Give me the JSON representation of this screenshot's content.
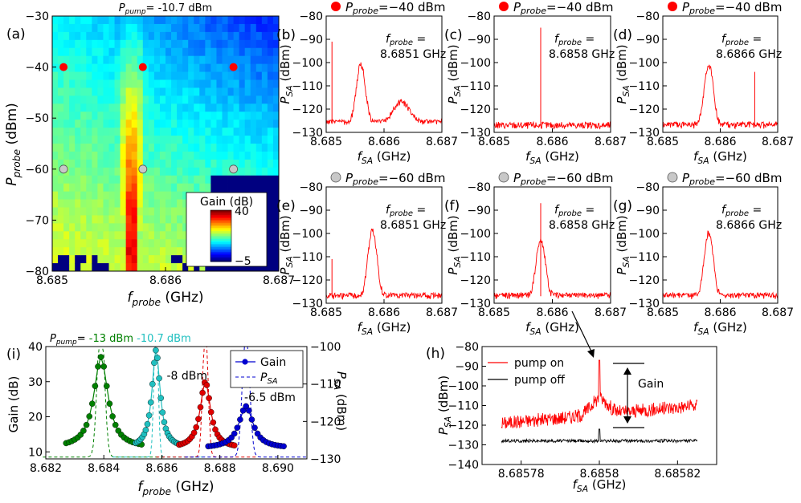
{
  "figure": {
    "panel_a": {
      "letter": "(a)",
      "title_prefix": "P",
      "title_sub": "pump",
      "title_value": "= -10.7 dBm",
      "xlabel_main": "f",
      "xlabel_sub": "probe",
      "xlabel_unit": " (GHz)",
      "ylabel_main": "P",
      "ylabel_sub": "probe",
      "ylabel_unit": " (dBm)",
      "colorbar_title": "Gain (dB)",
      "colorbar_max": "40",
      "colorbar_min": "−5"
    },
    "spectra_common": {
      "title_value_top": "=−40 dBm",
      "title_value_bottom": "=−60 dBm",
      "xlabel_main": "f",
      "xlabel_sub": "SA",
      "xlabel_unit": " (GHz)",
      "ylabel_main": "P",
      "ylabel_sub": "SA",
      "ylabel_unit": " (dBm)",
      "fprobe_label": "=",
      "trace_color": "#ff0000",
      "red_dot": "#ff0000",
      "gray_dot": "#c8c8c8"
    },
    "panel_h": {
      "letter": "(h)",
      "legend_on": "pump on",
      "legend_off": "pump off",
      "gain_label": "Gain",
      "xlabel_main": "f",
      "xlabel_sub": "SA",
      "xlabel_unit": " (GHz)",
      "ylabel_main": "P",
      "ylabel_sub": "SA",
      "ylabel_unit": " (dBm)"
    },
    "panel_i": {
      "letter": "(i)",
      "top_label_prefix": "P",
      "top_label_sub": "pump",
      "legend_gain": "Gain",
      "legend_psa_main": "P",
      "legend_psa_sub": "SA",
      "ylabel_left": "Gain (dB)",
      "ylabel_right_main": "P",
      "ylabel_right_sub": "SA",
      "ylabel_right_unit": " (dBm)",
      "xlabel_main": "f",
      "xlabel_sub": "probe",
      "xlabel_unit": " (GHz)"
    }
  },
  "chart_data": [
    {
      "id": "a",
      "type": "heatmap",
      "title": "Ppump = -10.7 dBm",
      "xlabel": "fprobe (GHz)",
      "ylabel": "Pprobe (dBm)",
      "xlim": [
        8.685,
        8.687
      ],
      "ylim": [
        -80,
        -30
      ],
      "xticks": [
        "8.685",
        "8.686",
        "8.687"
      ],
      "yticks": [
        "−30",
        "−40",
        "−50",
        "−60",
        "−70",
        "−80"
      ],
      "colorbar": {
        "label": "Gain (dB)",
        "range": [
          -5,
          40
        ],
        "colormap": "jet"
      },
      "peak_frequency": 8.6857,
      "markers": [
        {
          "x": 8.6851,
          "y": -40,
          "color": "red"
        },
        {
          "x": 8.6858,
          "y": -40,
          "color": "red"
        },
        {
          "x": 8.6866,
          "y": -40,
          "color": "red"
        },
        {
          "x": 8.6851,
          "y": -60,
          "color": "gray"
        },
        {
          "x": 8.6858,
          "y": -60,
          "color": "gray"
        },
        {
          "x": 8.6866,
          "y": -60,
          "color": "gray"
        }
      ]
    },
    {
      "id": "b",
      "type": "line",
      "pprobe": "−40",
      "fprobe": "8.6851 GHz",
      "xlim": [
        8.685,
        8.687
      ],
      "ylim": [
        -130,
        -80
      ],
      "xticks": [
        "8.685",
        "8.686",
        "8.687"
      ],
      "yticks": [
        "−80",
        "−90",
        "−100",
        "−110",
        "−120",
        "−130"
      ],
      "noise_floor": -126,
      "main_peak": {
        "x": 8.6856,
        "y": -101
      },
      "second_peak": {
        "x": 8.6863,
        "y": -117
      },
      "spur": {
        "x": 8.6851,
        "y": -91
      }
    },
    {
      "id": "c",
      "type": "line",
      "pprobe": "−40",
      "fprobe": "8.6858 GHz",
      "xlim": [
        8.685,
        8.687
      ],
      "ylim": [
        -130,
        -80
      ],
      "xticks": [
        "8.685",
        "8.686",
        "8.687"
      ],
      "yticks": [
        "−80",
        "−90",
        "−100",
        "−110",
        "−120",
        "−130"
      ],
      "noise_floor": -127,
      "spur": {
        "x": 8.6858,
        "y": -85
      }
    },
    {
      "id": "d",
      "type": "line",
      "pprobe": "−40",
      "fprobe": "8.6866 GHz",
      "xlim": [
        8.685,
        8.687
      ],
      "ylim": [
        -130,
        -80
      ],
      "xticks": [
        "8.685",
        "8.686",
        "8.687"
      ],
      "yticks": [
        "−80",
        "−90",
        "−100",
        "−110",
        "−120",
        "−130"
      ],
      "noise_floor": -127,
      "main_peak": {
        "x": 8.6858,
        "y": -101
      },
      "spur": {
        "x": 8.6866,
        "y": -104
      }
    },
    {
      "id": "e",
      "type": "line",
      "pprobe": "−60",
      "fprobe": "8.6851 GHz",
      "xlim": [
        8.685,
        8.687
      ],
      "ylim": [
        -130,
        -80
      ],
      "xticks": [
        "8.685",
        "8.686",
        "8.687"
      ],
      "yticks": [
        "−80",
        "−90",
        "−100",
        "−110",
        "−120",
        "−130"
      ],
      "noise_floor": -127,
      "main_peak": {
        "x": 8.6858,
        "y": -99
      },
      "spur": {
        "x": 8.6851,
        "y": -111
      }
    },
    {
      "id": "f",
      "type": "line",
      "pprobe": "−60",
      "fprobe": "8.6858 GHz",
      "xlim": [
        8.685,
        8.687
      ],
      "ylim": [
        -130,
        -80
      ],
      "xticks": [
        "8.685",
        "8.686",
        "8.687"
      ],
      "yticks": [
        "−80",
        "−90",
        "−100",
        "−110",
        "−120",
        "−130"
      ],
      "noise_floor": -127,
      "main_peak": {
        "x": 8.6858,
        "y": -103
      },
      "spur": {
        "x": 8.6858,
        "y": -87
      }
    },
    {
      "id": "g",
      "type": "line",
      "pprobe": "−60",
      "fprobe": "8.6866 GHz",
      "xlim": [
        8.685,
        8.687
      ],
      "ylim": [
        -130,
        -80
      ],
      "xticks": [
        "8.685",
        "8.686",
        "8.687"
      ],
      "yticks": [
        "−80",
        "−90",
        "−100",
        "−110",
        "−120",
        "−130"
      ],
      "noise_floor": -127,
      "main_peak": {
        "x": 8.6858,
        "y": -100
      }
    },
    {
      "id": "h",
      "type": "line",
      "xlabel": "fSA (GHz)",
      "ylabel": "PSA (dBm)",
      "xlim": [
        8.68577,
        8.68583
      ],
      "ylim": [
        -140,
        -80
      ],
      "xticks": [
        "8.68578",
        "8.6858",
        "8.68582"
      ],
      "yticks": [
        "−80",
        "−90",
        "−100",
        "−110",
        "−120",
        "−130",
        "−140"
      ],
      "series": [
        {
          "name": "pump on",
          "color": "#ff0000",
          "x_start": 8.685775,
          "x_end": 8.685825,
          "y_start": -119,
          "y_end": -110,
          "spike": {
            "x": 8.6858,
            "y": -87
          }
        },
        {
          "name": "pump off",
          "color": "#000000",
          "x_start": 8.685775,
          "x_end": 8.685825,
          "y_start": -128,
          "y_end": -128,
          "spike": {
            "x": 8.6858,
            "y": -122
          }
        }
      ]
    },
    {
      "id": "i",
      "type": "line",
      "xlabel": "fprobe (GHz)",
      "ylabel": "Gain (dB)",
      "ylabel_right": "PSA (dBm)",
      "xlim": [
        8.682,
        8.691
      ],
      "ylim": [
        8,
        40
      ],
      "ylim_right": [
        -130,
        -100
      ],
      "xticks": [
        "8.682",
        "8.684",
        "8.686",
        "8.688",
        "8.690"
      ],
      "yticks": [
        "10",
        "20",
        "30",
        "40"
      ],
      "yticks_right": [
        "−100",
        "−110",
        "−120",
        "−130"
      ],
      "series": [
        {
          "name": "-13 dBm",
          "color": "#008000",
          "peak_x": 8.6839,
          "peak_gain": 37,
          "x_range": [
            8.6827,
            8.6853
          ]
        },
        {
          "name": "-10.7 dBm",
          "color": "#20c0c0",
          "peak_x": 8.6858,
          "peak_gain": 39,
          "x_range": [
            8.6851,
            8.6866
          ]
        },
        {
          "name": "-8 dBm",
          "color": "#e00000",
          "peak_x": 8.6875,
          "peak_gain": 30,
          "x_range": [
            8.6866,
            8.6885
          ]
        },
        {
          "name": "-6.5 dBm",
          "color": "#0000d0",
          "peak_x": 8.6889,
          "peak_gain": 23,
          "x_range": [
            8.6876,
            8.6902
          ]
        }
      ]
    }
  ]
}
